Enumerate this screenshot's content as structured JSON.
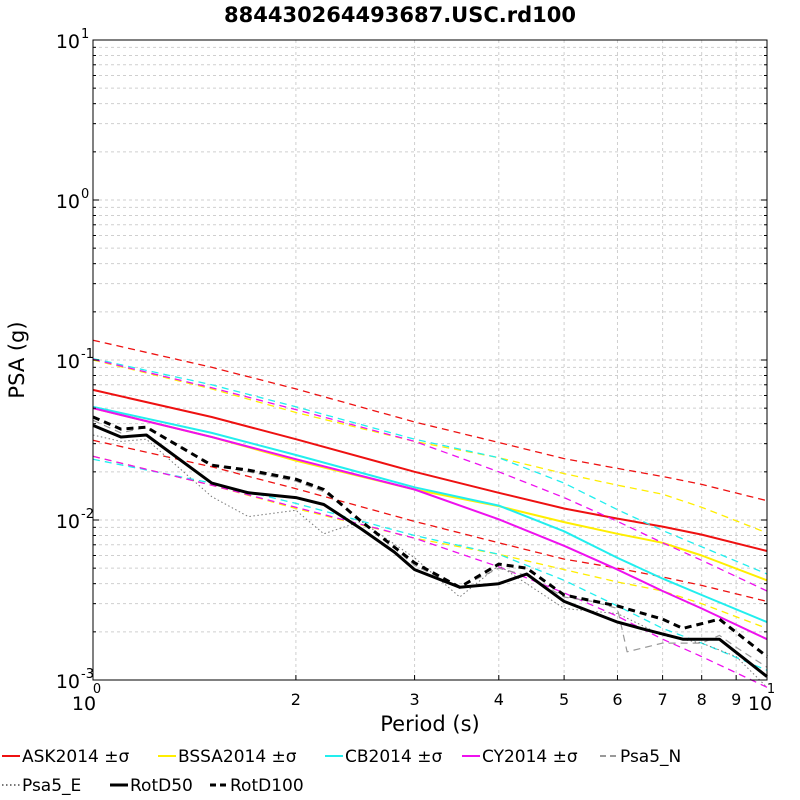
{
  "chart_data": {
    "type": "line",
    "title": "884430264493687.USC.rd100",
    "xlabel": "Period (s)",
    "ylabel": "PSA (g)",
    "xscale": "log",
    "yscale": "log",
    "xlim": [
      1,
      10
    ],
    "ylim": [
      0.001,
      10
    ],
    "grid": true,
    "legend_position": "bottom",
    "x_ticks": [
      {
        "value": 1,
        "base": "10",
        "exp": "0"
      },
      {
        "value": 2,
        "base": "2",
        "exp": ""
      },
      {
        "value": 3,
        "base": "3",
        "exp": ""
      },
      {
        "value": 4,
        "base": "4",
        "exp": ""
      },
      {
        "value": 5,
        "base": "5",
        "exp": ""
      },
      {
        "value": 6,
        "base": "6",
        "exp": ""
      },
      {
        "value": 7,
        "base": "7",
        "exp": ""
      },
      {
        "value": 8,
        "base": "8",
        "exp": ""
      },
      {
        "value": 9,
        "base": "9",
        "exp": ""
      },
      {
        "value": 10,
        "base": "10",
        "exp": "1"
      }
    ],
    "y_ticks": [
      {
        "value": 10,
        "base": "10",
        "exp": "1"
      },
      {
        "value": 1,
        "base": "10",
        "exp": "0"
      },
      {
        "value": 0.1,
        "base": "10",
        "exp": "-1"
      },
      {
        "value": 0.01,
        "base": "10",
        "exp": "-2"
      },
      {
        "value": 0.001,
        "base": "10",
        "exp": "-3"
      }
    ],
    "series": [
      {
        "name": "ASK2014 ±σ",
        "color": "#ee1111",
        "style": "solid",
        "width": 2,
        "x": [
          1,
          1.5,
          2,
          3,
          4,
          5,
          6,
          7,
          8,
          10
        ],
        "y": [
          0.065,
          0.044,
          0.032,
          0.02,
          0.0148,
          0.0118,
          0.0102,
          0.0091,
          0.0081,
          0.0064
        ]
      },
      {
        "name": "",
        "color": "#ee1111",
        "style": "dashed",
        "width": 1.3,
        "x": [
          1,
          1.5,
          2,
          3,
          4,
          5,
          6,
          7,
          8,
          10
        ],
        "y": [
          0.133,
          0.09,
          0.066,
          0.041,
          0.0305,
          0.0242,
          0.021,
          0.0187,
          0.0167,
          0.0132
        ]
      },
      {
        "name": "",
        "color": "#ee1111",
        "style": "dashed",
        "width": 1.3,
        "x": [
          1,
          1.5,
          2,
          3,
          4,
          5,
          6,
          7,
          8,
          10
        ],
        "y": [
          0.0315,
          0.0215,
          0.0157,
          0.0098,
          0.0072,
          0.0057,
          0.005,
          0.0044,
          0.0039,
          0.0031
        ]
      },
      {
        "name": "BSSA2014 ±σ",
        "color": "#ffee00",
        "style": "solid",
        "width": 2,
        "x": [
          1,
          1.5,
          2,
          3,
          4,
          5,
          6,
          7,
          8,
          10
        ],
        "y": [
          0.05,
          0.033,
          0.0235,
          0.0155,
          0.0122,
          0.0097,
          0.0082,
          0.0072,
          0.006,
          0.0042
        ]
      },
      {
        "name": "",
        "color": "#ffee00",
        "style": "dashed",
        "width": 1.3,
        "x": [
          1,
          1.5,
          2,
          3,
          4,
          5,
          6,
          7,
          8,
          10
        ],
        "y": [
          0.1,
          0.066,
          0.047,
          0.031,
          0.0245,
          0.0195,
          0.0165,
          0.0145,
          0.012,
          0.0083
        ]
      },
      {
        "name": "",
        "color": "#ffee00",
        "style": "dashed",
        "width": 1.3,
        "x": [
          1,
          1.5,
          2,
          3,
          4,
          5,
          6,
          7,
          8,
          10
        ],
        "y": [
          0.025,
          0.0165,
          0.0118,
          0.0077,
          0.0061,
          0.0049,
          0.0041,
          0.0036,
          0.003,
          0.0021
        ]
      },
      {
        "name": "CB2014 ±σ",
        "color": "#22eeee",
        "style": "solid",
        "width": 2,
        "x": [
          1,
          1.5,
          2,
          3,
          4,
          5,
          6,
          7,
          8,
          10
        ],
        "y": [
          0.051,
          0.035,
          0.0255,
          0.016,
          0.0123,
          0.0085,
          0.0058,
          0.0043,
          0.0034,
          0.0023
        ]
      },
      {
        "name": "",
        "color": "#22eeee",
        "style": "dashed",
        "width": 1.3,
        "x": [
          1,
          1.5,
          2,
          3,
          4,
          5,
          6,
          7,
          8,
          10
        ],
        "y": [
          0.102,
          0.07,
          0.051,
          0.032,
          0.0245,
          0.017,
          0.0116,
          0.0086,
          0.0068,
          0.0046
        ]
      },
      {
        "name": "",
        "color": "#22eeee",
        "style": "dashed",
        "width": 1.3,
        "x": [
          1,
          1.5,
          2,
          3,
          4,
          5,
          6,
          7,
          8,
          10
        ],
        "y": [
          0.024,
          0.017,
          0.0127,
          0.008,
          0.0061,
          0.0042,
          0.0029,
          0.0021,
          0.0017,
          0.00115
        ]
      },
      {
        "name": "CY2014 ±σ",
        "color": "#ee11ee",
        "style": "solid",
        "width": 2,
        "x": [
          1,
          1.5,
          2,
          3,
          4,
          5,
          6,
          7,
          8,
          10
        ],
        "y": [
          0.05,
          0.033,
          0.024,
          0.0155,
          0.0101,
          0.0069,
          0.0049,
          0.0036,
          0.0028,
          0.0018
        ]
      },
      {
        "name": "",
        "color": "#ee11ee",
        "style": "dashed",
        "width": 1.3,
        "x": [
          1,
          1.5,
          2,
          3,
          4,
          5,
          6,
          7,
          8,
          10
        ],
        "y": [
          0.101,
          0.067,
          0.049,
          0.031,
          0.02,
          0.0138,
          0.0098,
          0.0072,
          0.0056,
          0.0036
        ]
      },
      {
        "name": "",
        "color": "#ee11ee",
        "style": "dashed",
        "width": 1.3,
        "x": [
          1,
          1.5,
          2,
          3,
          4,
          5,
          6,
          7,
          8,
          10
        ],
        "y": [
          0.025,
          0.0165,
          0.012,
          0.0077,
          0.0051,
          0.0035,
          0.0025,
          0.0018,
          0.0014,
          0.0009
        ]
      },
      {
        "name": "Psa5_N",
        "color": "#999999",
        "style": "dashed",
        "width": 1.2,
        "x": [
          1,
          1.1,
          1.2,
          1.5,
          1.7,
          2,
          2.2,
          2.5,
          3,
          3.5,
          4,
          4.4,
          5,
          5.5,
          6,
          6.2,
          7,
          7.5,
          8,
          8.5,
          9,
          10
        ],
        "y": [
          0.042,
          0.035,
          0.038,
          0.022,
          0.02,
          0.0175,
          0.015,
          0.01,
          0.0052,
          0.0038,
          0.005,
          0.0045,
          0.0033,
          0.0031,
          0.0028,
          0.0015,
          0.0017,
          0.0017,
          0.0017,
          0.0019,
          0.0016,
          0.0012
        ]
      },
      {
        "name": "Psa5_E",
        "color": "#777777",
        "style": "dotted",
        "width": 1,
        "x": [
          1,
          1.1,
          1.2,
          1.5,
          1.7,
          2,
          2.2,
          2.5,
          3,
          3.5,
          4,
          4.4,
          5,
          6,
          7,
          8,
          9,
          10
        ],
        "y": [
          0.034,
          0.031,
          0.032,
          0.014,
          0.0105,
          0.0115,
          0.0082,
          0.0098,
          0.0058,
          0.0033,
          0.0052,
          0.004,
          0.0028,
          0.0026,
          0.0019,
          0.0017,
          0.0014,
          0.0009
        ]
      },
      {
        "name": "RotD50",
        "color": "#000000",
        "style": "solid",
        "width": 3,
        "x": [
          1,
          1.1,
          1.2,
          1.5,
          1.7,
          2,
          2.2,
          2.5,
          2.8,
          3,
          3.5,
          4,
          4.4,
          5,
          6,
          6.5,
          7.5,
          8.5,
          10
        ],
        "y": [
          0.039,
          0.033,
          0.034,
          0.017,
          0.0148,
          0.0138,
          0.0125,
          0.0088,
          0.0063,
          0.0049,
          0.0038,
          0.004,
          0.0046,
          0.0031,
          0.0023,
          0.0021,
          0.0018,
          0.0018,
          0.00105
        ]
      },
      {
        "name": "RotD100",
        "color": "#000000",
        "style": "dashed",
        "width": 3,
        "x": [
          1,
          1.1,
          1.2,
          1.5,
          1.7,
          2,
          2.2,
          2.5,
          3,
          3.5,
          4,
          4.4,
          5,
          6,
          7,
          7.5,
          8.5,
          10
        ],
        "y": [
          0.044,
          0.037,
          0.038,
          0.022,
          0.0205,
          0.018,
          0.0155,
          0.0098,
          0.0054,
          0.0038,
          0.0053,
          0.005,
          0.0034,
          0.0029,
          0.0024,
          0.0021,
          0.0024,
          0.0014
        ]
      }
    ],
    "legend": [
      {
        "label": "ASK2014 ±σ",
        "color": "#ee1111",
        "style": "solid"
      },
      {
        "label": "BSSA2014 ±σ",
        "color": "#ffee00",
        "style": "solid"
      },
      {
        "label": "CB2014 ±σ",
        "color": "#22eeee",
        "style": "solid"
      },
      {
        "label": "CY2014 ±σ",
        "color": "#ee11ee",
        "style": "solid"
      },
      {
        "label": "Psa5_N",
        "color": "#999999",
        "style": "dashed"
      },
      {
        "label": "Psa5_E",
        "color": "#777777",
        "style": "dotted"
      },
      {
        "label": "RotD50",
        "color": "#000000",
        "style": "solid"
      },
      {
        "label": "RotD100",
        "color": "#000000",
        "style": "dashed"
      }
    ]
  }
}
